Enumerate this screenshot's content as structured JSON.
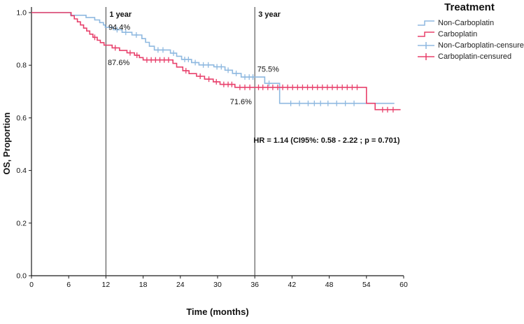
{
  "legend": {
    "title": "Treatment",
    "entries": [
      {
        "label": "Non-Carboplatin",
        "color": "#8fb9e0",
        "symbol": "step-line"
      },
      {
        "label": "Carboplatin",
        "color": "#e8416c",
        "symbol": "step-line"
      },
      {
        "label": "Non-Carboplatin-censured",
        "color": "#8fb9e0",
        "symbol": "censor-plus"
      },
      {
        "label": "Carboplatin-censured",
        "color": "#e8416c",
        "symbol": "censor-plus"
      }
    ]
  },
  "chart_data": {
    "type": "line",
    "subtype": "kaplan-meier-step",
    "title": "",
    "xlabel": "Time (months)",
    "ylabel": "OS, Proportion",
    "xlim": [
      0,
      60
    ],
    "ylim": [
      0.0,
      1.0
    ],
    "x_ticks": [
      0,
      6,
      12,
      18,
      24,
      30,
      36,
      42,
      48,
      54,
      60
    ],
    "y_ticks": [
      0.0,
      0.2,
      0.4,
      0.6,
      0.8,
      1.0
    ],
    "grid": false,
    "legend_position": "right",
    "axis_color": "#1a1a1a",
    "reference_line_color": "#3c3c3c",
    "reference_lines": [
      {
        "x": 12,
        "label": "1 year"
      },
      {
        "x": 36,
        "label": "3 year"
      }
    ],
    "annotations": [
      {
        "text": "94.4%",
        "x": 12.4,
        "y": 0.935,
        "bold": false
      },
      {
        "text": "87.6%",
        "x": 12.3,
        "y": 0.8,
        "bold": false
      },
      {
        "text": "75.5%",
        "x": 36.4,
        "y": 0.775,
        "bold": false
      },
      {
        "text": "71.6%",
        "x": 32.0,
        "y": 0.652,
        "bold": false
      },
      {
        "text": "HR = 1.14 (CI95%: 0.58 - 2.22 ; p = 0.701)",
        "x": 35.8,
        "y": 0.505,
        "bold": true
      }
    ],
    "survival_milestones": [
      {
        "series": "Non-Carboplatin",
        "time_months": 12,
        "survival": 0.944
      },
      {
        "series": "Carboplatin",
        "time_months": 12,
        "survival": 0.876
      },
      {
        "series": "Non-Carboplatin",
        "time_months": 36,
        "survival": 0.755
      },
      {
        "series": "Carboplatin",
        "time_months": 36,
        "survival": 0.716
      }
    ],
    "statistics": {
      "HR": 1.14,
      "CI95_low": 0.58,
      "CI95_high": 2.22,
      "p_value": 0.701
    },
    "series": [
      {
        "name": "Non-Carboplatin",
        "color": "#8fb9e0",
        "steps": [
          [
            0,
            1.0
          ],
          [
            6.3,
            0.99
          ],
          [
            8.8,
            0.981
          ],
          [
            10.2,
            0.972
          ],
          [
            11.0,
            0.962
          ],
          [
            11.6,
            0.953
          ],
          [
            11.9,
            0.944
          ],
          [
            13.2,
            0.935
          ],
          [
            14.6,
            0.925
          ],
          [
            16.2,
            0.915
          ],
          [
            17.8,
            0.901
          ],
          [
            18.4,
            0.887
          ],
          [
            19.0,
            0.872
          ],
          [
            19.8,
            0.858
          ],
          [
            22.4,
            0.846
          ],
          [
            23.4,
            0.834
          ],
          [
            24.2,
            0.822
          ],
          [
            25.8,
            0.81
          ],
          [
            27.0,
            0.801
          ],
          [
            29.4,
            0.794
          ],
          [
            31.2,
            0.781
          ],
          [
            32.4,
            0.769
          ],
          [
            33.8,
            0.755
          ],
          [
            37.6,
            0.731
          ],
          [
            40.0,
            0.655
          ],
          [
            58.5,
            0.655
          ]
        ],
        "censored": [
          [
            13.8,
            0.935
          ],
          [
            15.2,
            0.925
          ],
          [
            16.9,
            0.915
          ],
          [
            20.4,
            0.858
          ],
          [
            21.2,
            0.858
          ],
          [
            22.9,
            0.846
          ],
          [
            24.7,
            0.822
          ],
          [
            25.3,
            0.822
          ],
          [
            26.4,
            0.81
          ],
          [
            27.7,
            0.801
          ],
          [
            28.5,
            0.801
          ],
          [
            29.9,
            0.794
          ],
          [
            30.6,
            0.794
          ],
          [
            31.7,
            0.781
          ],
          [
            33.0,
            0.769
          ],
          [
            34.4,
            0.755
          ],
          [
            35.1,
            0.755
          ],
          [
            35.7,
            0.755
          ],
          [
            38.3,
            0.731
          ],
          [
            41.8,
            0.655
          ],
          [
            43.2,
            0.655
          ],
          [
            44.6,
            0.655
          ],
          [
            45.6,
            0.655
          ],
          [
            46.6,
            0.655
          ],
          [
            47.8,
            0.655
          ],
          [
            49.2,
            0.655
          ],
          [
            50.6,
            0.655
          ],
          [
            52.0,
            0.655
          ]
        ]
      },
      {
        "name": "Carboplatin",
        "color": "#e8416c",
        "steps": [
          [
            0,
            1.0
          ],
          [
            6.4,
            0.988
          ],
          [
            6.9,
            0.976
          ],
          [
            7.4,
            0.965
          ],
          [
            7.9,
            0.953
          ],
          [
            8.4,
            0.941
          ],
          [
            8.9,
            0.93
          ],
          [
            9.4,
            0.918
          ],
          [
            9.9,
            0.906
          ],
          [
            10.6,
            0.895
          ],
          [
            11.1,
            0.886
          ],
          [
            11.7,
            0.876
          ],
          [
            13.0,
            0.866
          ],
          [
            14.2,
            0.856
          ],
          [
            15.4,
            0.847
          ],
          [
            16.6,
            0.838
          ],
          [
            17.4,
            0.829
          ],
          [
            18.0,
            0.82
          ],
          [
            22.8,
            0.807
          ],
          [
            23.4,
            0.793
          ],
          [
            24.4,
            0.779
          ],
          [
            25.4,
            0.768
          ],
          [
            26.6,
            0.758
          ],
          [
            27.9,
            0.747
          ],
          [
            29.3,
            0.737
          ],
          [
            30.4,
            0.727
          ],
          [
            32.8,
            0.716
          ],
          [
            54.0,
            0.655
          ],
          [
            55.4,
            0.631
          ],
          [
            59.5,
            0.631
          ]
        ],
        "censored": [
          [
            10.2,
            0.906
          ],
          [
            13.5,
            0.866
          ],
          [
            15.9,
            0.847
          ],
          [
            17.0,
            0.838
          ],
          [
            18.6,
            0.82
          ],
          [
            19.3,
            0.82
          ],
          [
            20.0,
            0.82
          ],
          [
            20.7,
            0.82
          ],
          [
            21.4,
            0.82
          ],
          [
            22.1,
            0.82
          ],
          [
            24.9,
            0.779
          ],
          [
            27.2,
            0.758
          ],
          [
            28.6,
            0.747
          ],
          [
            29.8,
            0.737
          ],
          [
            31.0,
            0.727
          ],
          [
            31.7,
            0.727
          ],
          [
            32.3,
            0.727
          ],
          [
            33.6,
            0.716
          ],
          [
            34.4,
            0.716
          ],
          [
            35.2,
            0.716
          ],
          [
            36.6,
            0.716
          ],
          [
            37.3,
            0.716
          ],
          [
            38.1,
            0.716
          ],
          [
            38.9,
            0.716
          ],
          [
            39.7,
            0.716
          ],
          [
            40.5,
            0.716
          ],
          [
            41.3,
            0.716
          ],
          [
            42.1,
            0.716
          ],
          [
            42.9,
            0.716
          ],
          [
            43.7,
            0.716
          ],
          [
            44.5,
            0.716
          ],
          [
            45.3,
            0.716
          ],
          [
            46.1,
            0.716
          ],
          [
            46.9,
            0.716
          ],
          [
            47.7,
            0.716
          ],
          [
            48.5,
            0.716
          ],
          [
            49.3,
            0.716
          ],
          [
            50.1,
            0.716
          ],
          [
            50.9,
            0.716
          ],
          [
            51.7,
            0.716
          ],
          [
            52.5,
            0.716
          ],
          [
            56.6,
            0.631
          ],
          [
            57.4,
            0.631
          ],
          [
            58.3,
            0.631
          ]
        ]
      }
    ]
  }
}
